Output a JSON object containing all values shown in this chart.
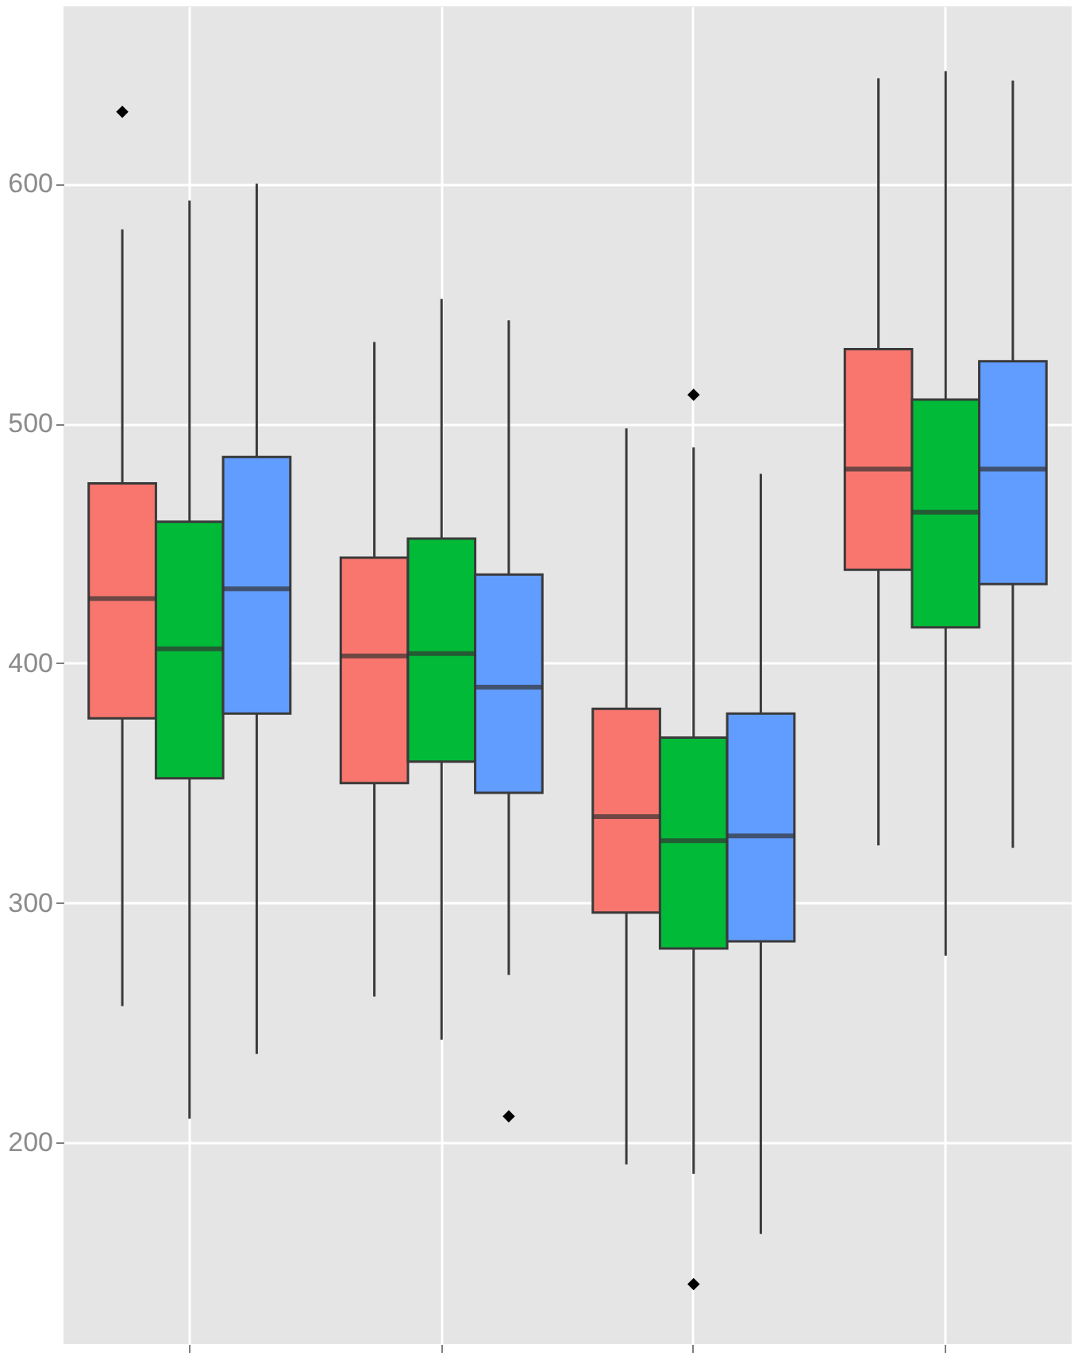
{
  "chart_data": {
    "type": "box",
    "categories": [
      null,
      null,
      null,
      null
    ],
    "series": [
      {
        "color": "#f8766d",
        "boxes": [
          {
            "low": 257,
            "q1": 377,
            "median": 427,
            "q3": 475,
            "high": 581,
            "outliers": [
              630
            ]
          },
          {
            "low": 261,
            "q1": 350,
            "median": 403,
            "q3": 444,
            "high": 534
          },
          {
            "low": 191,
            "q1": 296,
            "median": 336,
            "q3": 381,
            "high": 498
          },
          {
            "low": 324,
            "q1": 439,
            "median": 481,
            "q3": 531,
            "high": 644
          }
        ]
      },
      {
        "color": "#00ba38",
        "boxes": [
          {
            "low": 210,
            "q1": 352,
            "median": 406,
            "q3": 459,
            "high": 593
          },
          {
            "low": 243,
            "q1": 359,
            "median": 404,
            "q3": 452,
            "high": 552
          },
          {
            "low": 187,
            "q1": 281,
            "median": 326,
            "q3": 369,
            "high": 490,
            "outliers": [
              512,
              141
            ]
          },
          {
            "low": 278,
            "q1": 415,
            "median": 463,
            "q3": 510,
            "high": 647
          }
        ]
      },
      {
        "color": "#619cff",
        "boxes": [
          {
            "low": 237,
            "q1": 379,
            "median": 431,
            "q3": 486,
            "high": 600
          },
          {
            "low": 270,
            "q1": 346,
            "median": 390,
            "q3": 437,
            "high": 543,
            "outliers": [
              211
            ]
          },
          {
            "low": 162,
            "q1": 284,
            "median": 328,
            "q3": 379,
            "high": 479
          },
          {
            "low": 323,
            "q1": 433,
            "median": 481,
            "q3": 526,
            "high": 643
          }
        ]
      }
    ],
    "ylim": [
      116,
      674
    ],
    "yticks": [
      200,
      300,
      400,
      500,
      600
    ],
    "grid": true,
    "tick_labels": "y"
  }
}
